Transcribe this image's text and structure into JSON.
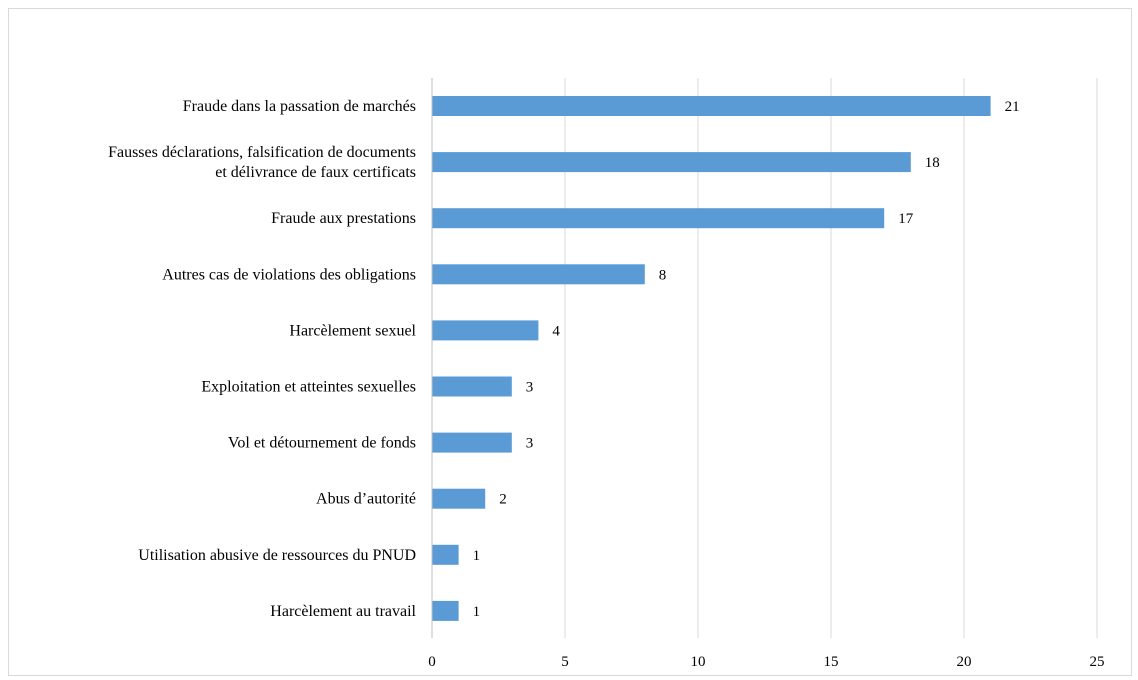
{
  "chart_data": {
    "type": "bar",
    "orientation": "horizontal",
    "title": "",
    "xlabel": "",
    "ylabel": "",
    "categories": [
      [
        "Fraude dans la passation de marchés"
      ],
      [
        "Fausses déclarations, falsification de documents",
        "et délivrance de faux certificats"
      ],
      [
        "Fraude aux prestations"
      ],
      [
        "Autres cas de violations des obligations"
      ],
      [
        "Harcèlement sexuel"
      ],
      [
        "Exploitation et atteintes sexuelles"
      ],
      [
        "Vol et détournement de fonds"
      ],
      [
        "Abus d’autorité"
      ],
      [
        "Utilisation abusive de ressources du PNUD"
      ],
      [
        "Harcèlement au travail"
      ]
    ],
    "values": [
      21,
      18,
      17,
      8,
      4,
      3,
      3,
      2,
      1,
      1
    ],
    "xlim": [
      0,
      25
    ],
    "xticks": [
      "0",
      "5",
      "10",
      "15",
      "20",
      "25"
    ],
    "grid": "vertical",
    "legend": "none",
    "bar_color": "#5b9bd5",
    "grid_color": "#d9d9d9"
  }
}
